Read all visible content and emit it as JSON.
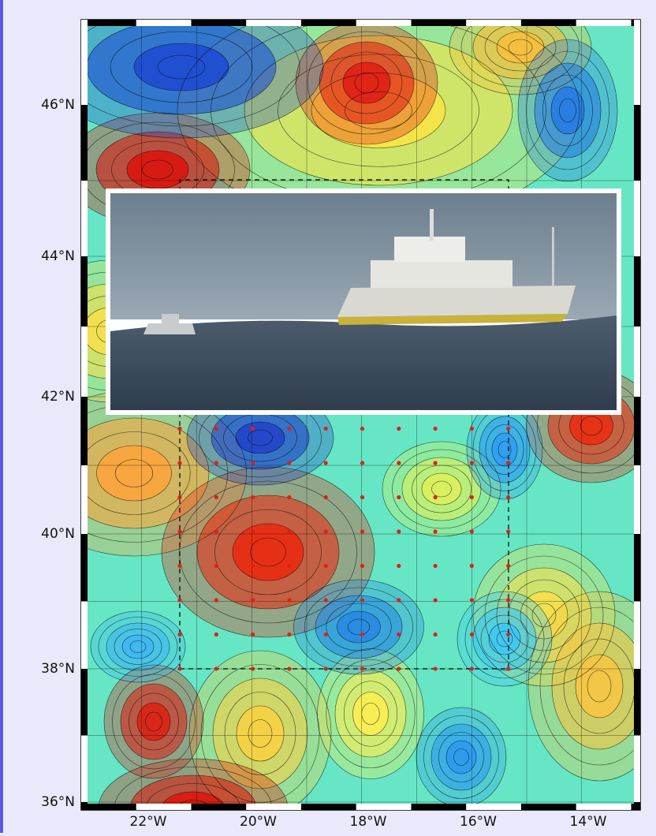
{
  "map": {
    "lat_ticks": [
      "36°N",
      "38°N",
      "40°N",
      "42°N",
      "44°N",
      "46°N"
    ],
    "lon_ticks": [
      "22°W",
      "20°W",
      "18°W",
      "16°W",
      "14°W"
    ]
  }
}
